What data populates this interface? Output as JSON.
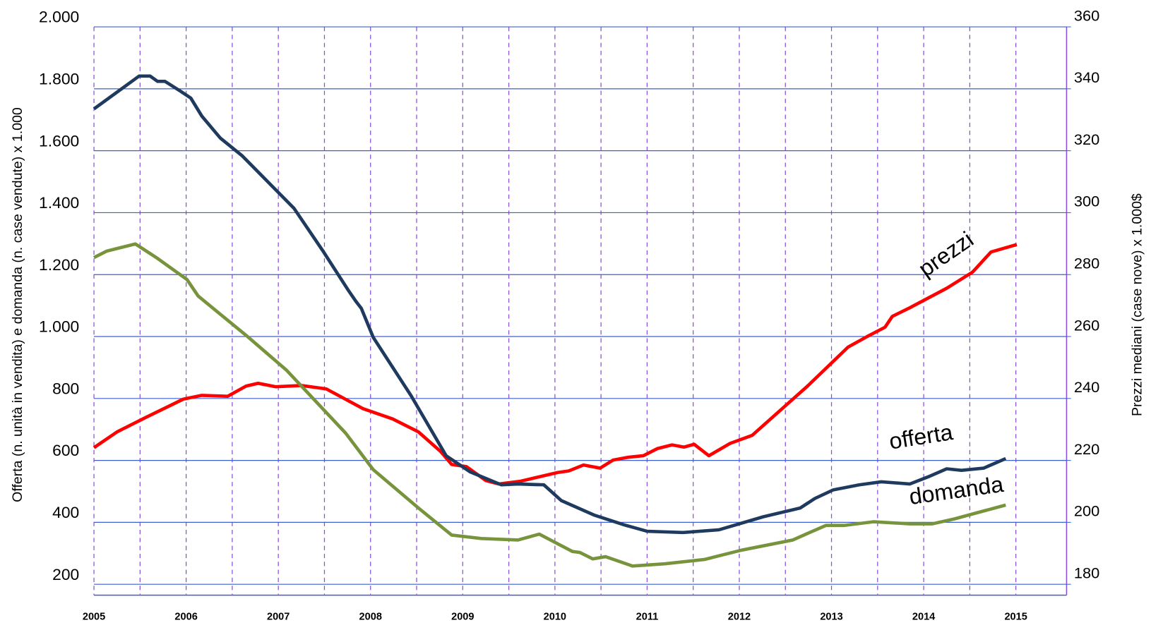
{
  "chart_data": {
    "type": "line",
    "y_label": "Offerta (n. unità in vendita) e domanda (n. case vendute) x 1.000",
    "y2_label": "Prezzi mediani (case nove)  x 1.000$",
    "xlim": [
      2005,
      2015.55
    ],
    "xticks": [
      2005,
      2006,
      2007,
      2008,
      2009,
      2010,
      2011,
      2012,
      2013,
      2014,
      2015
    ],
    "xminorticks": [
      2005.5,
      2006.5,
      2007.5,
      2008.5,
      2009.5,
      2010.5,
      2011.5,
      2012.5,
      2013.5,
      2014.5
    ],
    "ylim": [
      200,
      2000
    ],
    "yticks": [
      {
        "value": 200,
        "label": "200"
      },
      {
        "value": 400,
        "label": "400"
      },
      {
        "value": 600,
        "label": "600"
      },
      {
        "value": 800,
        "label": "800"
      },
      {
        "value": 1000,
        "label": "1.000"
      },
      {
        "value": 1200,
        "label": "1.200"
      },
      {
        "value": 1400,
        "label": "1.400"
      },
      {
        "value": 1600,
        "label": "1.600"
      },
      {
        "value": 1800,
        "label": "1.800"
      },
      {
        "value": 2000,
        "label": "2.000"
      }
    ],
    "y2lim": [
      180,
      360
    ],
    "y2ticks": [
      180,
      200,
      220,
      240,
      260,
      280,
      300,
      320,
      340,
      360
    ],
    "grid": true,
    "series": [
      {
        "name": "prezzi",
        "color": "#ff0000",
        "axis": "y2",
        "x": [
          2005,
          2005.25,
          2005.57,
          2005.97,
          2006.17,
          2006.45,
          2006.65,
          2006.78,
          2006.97,
          2007.25,
          2007.52,
          2007.92,
          2008.24,
          2008.52,
          2008.76,
          2008.88,
          2009.04,
          2009.25,
          2009.39,
          2009.63,
          2010.03,
          2010.15,
          2010.31,
          2010.49,
          2010.63,
          2010.79,
          2010.96,
          2011.11,
          2011.27,
          2011.4,
          2011.51,
          2011.67,
          2011.9,
          2012.14,
          2012.74,
          2013.18,
          2013.38,
          2013.58,
          2013.66,
          2013.85,
          2014.25,
          2014.53,
          2014.73,
          2015.01
        ],
        "values": [
          224.1,
          229.2,
          234.0,
          239.8,
          241.0,
          240.7,
          244.0,
          244.9,
          243.8,
          244.2,
          243.1,
          236.7,
          233.4,
          229.2,
          222.9,
          218.7,
          218.0,
          213.5,
          212.4,
          213.3,
          216.1,
          216.6,
          218.5,
          217.5,
          220.1,
          221.0,
          221.5,
          223.8,
          225.0,
          224.3,
          225.2,
          221.5,
          225.5,
          228.1,
          244.0,
          256.6,
          259.9,
          263.0,
          266.5,
          269.3,
          275.6,
          280.8,
          287.3,
          289.7
        ]
      },
      {
        "name": "offerta",
        "color": "#1f3a5f",
        "x": [
          2005,
          2005.49,
          2005.61,
          2005.69,
          2005.77,
          2005.93,
          2006.05,
          2006.17,
          2006.37,
          2006.61,
          2007.17,
          2007.48,
          2007.76,
          2007.84,
          2007.9,
          2008.03,
          2008.44,
          2008.82,
          2009.08,
          2009.42,
          2009.6,
          2009.88,
          2010.07,
          2010.43,
          2010.75,
          2011.0,
          2011.39,
          2011.78,
          2012.26,
          2012.66,
          2012.82,
          2013.02,
          2013.3,
          2013.54,
          2013.85,
          2014.05,
          2014.25,
          2014.41,
          2014.65,
          2014.89
        ],
        "values": [
          1735,
          1841,
          1841,
          1824,
          1824,
          1794,
          1770,
          1712,
          1641,
          1583,
          1414,
          1278,
          1149,
          1114,
          1091,
          997,
          809,
          615,
          563,
          521,
          524,
          521,
          470,
          423,
          392,
          371,
          367,
          376,
          418,
          446,
          477,
          505,
          521,
          531,
          524,
          547,
          573,
          568,
          575,
          606
        ]
      },
      {
        "name": "domanda",
        "color": "#77933c",
        "x": [
          2005,
          2005.14,
          2005.45,
          2005.69,
          2006.01,
          2006.13,
          2006.37,
          2006.65,
          2007.09,
          2007.73,
          2008.03,
          2008.52,
          2008.88,
          2009.2,
          2009.6,
          2009.83,
          2010.19,
          2010.27,
          2010.41,
          2010.55,
          2010.84,
          2011.19,
          2011.62,
          2012.02,
          2012.58,
          2012.74,
          2012.94,
          2013.14,
          2013.46,
          2013.85,
          2014.09,
          2014.33,
          2014.89
        ],
        "values": [
          1255,
          1276,
          1299,
          1252,
          1184,
          1131,
          1072,
          1004,
          891,
          688,
          570,
          446,
          359,
          348,
          343,
          362,
          306,
          303,
          282,
          289,
          259,
          266,
          280,
          310,
          343,
          364,
          390,
          390,
          402,
          395,
          395,
          411,
          456
        ]
      }
    ]
  }
}
